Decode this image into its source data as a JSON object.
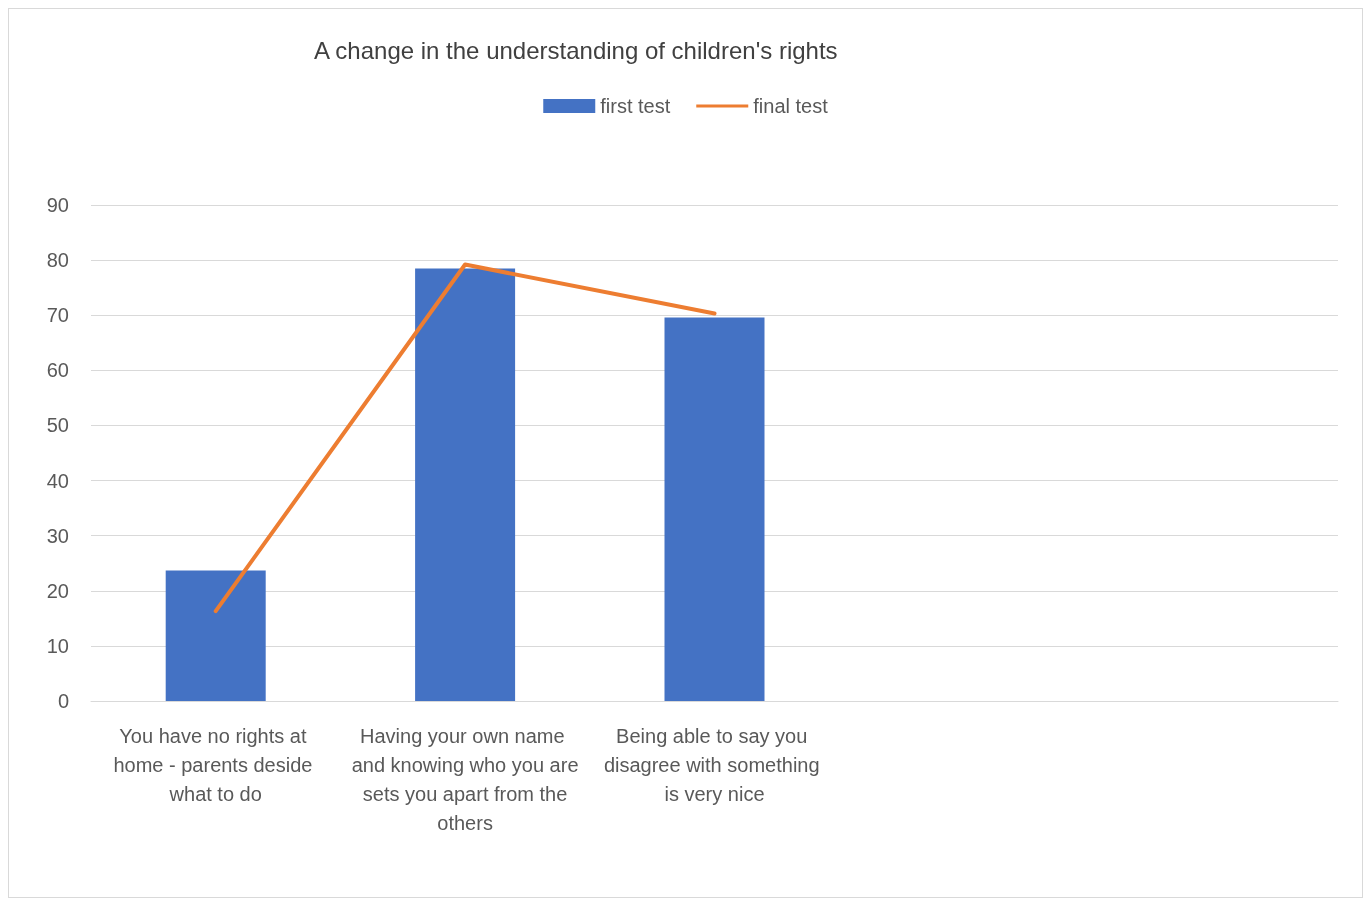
{
  "chart_data": {
    "type": "bar",
    "title": "A change in the understanding of children's rights",
    "categories": [
      "You have no rights at home - parents deside what to do",
      "Having your own name and knowing who you are sets you apart from the others",
      "Being able to say you disagree with something is very nice",
      null,
      null
    ],
    "series": [
      {
        "name": "first test",
        "color": "#4472c4",
        "values": [
          23.7,
          78.5,
          69.6,
          null,
          null
        ]
      },
      {
        "name": "final test",
        "type": "line",
        "color": "#ed7d31",
        "values": [
          16.3,
          79.2,
          70.3,
          null,
          null
        ]
      }
    ],
    "ylim": [
      0,
      90
    ],
    "yticks": [
      0,
      10,
      20,
      30,
      40,
      50,
      60,
      70,
      80,
      90
    ],
    "grid": "y",
    "legend": "top",
    "marker": "none"
  }
}
